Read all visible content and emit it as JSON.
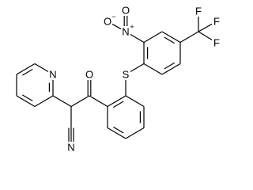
{
  "molecule": {
    "atoms": [
      {
        "label": "O"
      },
      {
        "label": "S"
      },
      {
        "label": "N",
        "charge": "+"
      },
      {
        "label": "O"
      },
      {
        "label": "O",
        "charge": "−"
      },
      {
        "label": "F"
      },
      {
        "label": "F"
      },
      {
        "label": "F"
      },
      {
        "label": "N"
      },
      {
        "label": "N"
      }
    ]
  }
}
